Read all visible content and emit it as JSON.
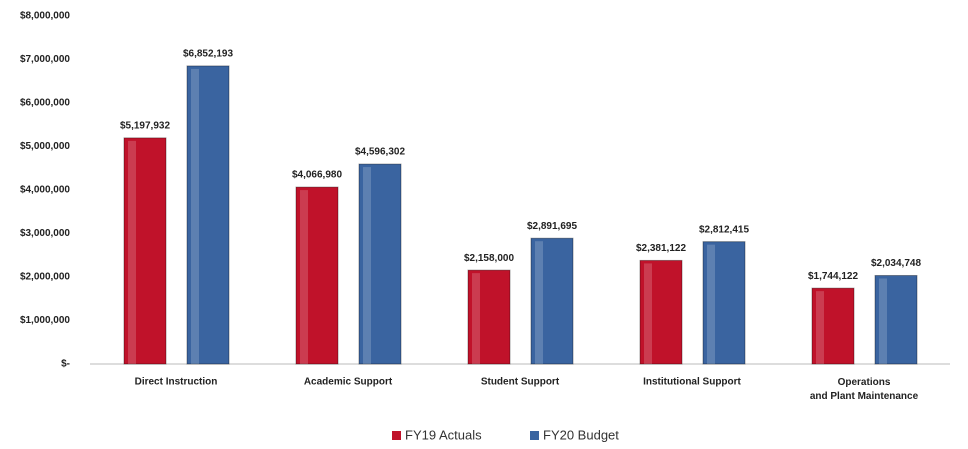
{
  "chart_data": {
    "type": "bar",
    "categories": [
      "Direct Instruction",
      "Academic Support",
      "Student Support",
      "Institutional Support",
      "Operations and Plant Maintenance"
    ],
    "series": [
      {
        "name": "FY19 Actuals",
        "color": "#c0122a",
        "values": [
          5197932,
          4066980,
          2158000,
          2381122,
          1744122
        ],
        "value_labels": [
          "$5,197,932",
          "$4,066,980",
          "$2,158,000",
          "$2,381,122",
          "$1,744,122"
        ]
      },
      {
        "name": "FY20 Budget",
        "color": "#3a64a0",
        "values": [
          6852193,
          4596302,
          2891695,
          2812415,
          2034748
        ],
        "value_labels": [
          "$6,852,193",
          "$4,596,302",
          "$2,891,695",
          "$2,812,415",
          "$2,034,748"
        ]
      }
    ],
    "ylim": [
      0,
      8000000
    ],
    "yticks": [
      {
        "value": 0,
        "label": "$-"
      },
      {
        "value": 1000000,
        "label": "$1,000,000"
      },
      {
        "value": 2000000,
        "label": "$2,000,000"
      },
      {
        "value": 3000000,
        "label": "$3,000,000"
      },
      {
        "value": 4000000,
        "label": "$4,000,000"
      },
      {
        "value": 5000000,
        "label": "$5,000,000"
      },
      {
        "value": 6000000,
        "label": "$6,000,000"
      },
      {
        "value": 7000000,
        "label": "$7,000,000"
      },
      {
        "value": 8000000,
        "label": "$8,000,000"
      }
    ],
    "grid": false,
    "legend": "bottom"
  }
}
